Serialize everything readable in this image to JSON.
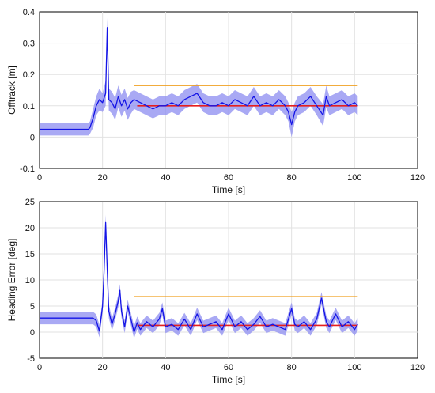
{
  "chart_data": [
    {
      "type": "line",
      "xlabel": "Time [s]",
      "ylabel": "Offtrack [m]",
      "xlim": [
        0,
        120
      ],
      "ylim": [
        -0.1,
        0.4
      ],
      "xticks": [
        0,
        20,
        40,
        60,
        80,
        100,
        120
      ],
      "yticks": [
        -0.1,
        0,
        0.1,
        0.2,
        0.3,
        0.4
      ],
      "xtick_labels": [
        "0",
        "20",
        "40",
        "60",
        "80",
        "100",
        "120"
      ],
      "ytick_labels": [
        "-0.1",
        "0",
        "0.1",
        "0.2",
        "0.3",
        "0.4"
      ],
      "grid": true,
      "colors": {
        "series": "#1414e6",
        "band": "#8c8cf0",
        "threshold": "#f0a020",
        "mean": "#e61e1e"
      },
      "series": [
        {
          "x": [
            0,
            15.5,
            16,
            17,
            18,
            19,
            20,
            21,
            21.5,
            22,
            23,
            24,
            25,
            26,
            27,
            28,
            29,
            30,
            32,
            34,
            36,
            38,
            40,
            42,
            44,
            46,
            48,
            50,
            52,
            54,
            56,
            58,
            60,
            62,
            64,
            66,
            68,
            70,
            72,
            74,
            76,
            78,
            79,
            80,
            81,
            82,
            84,
            86,
            88,
            90,
            91,
            92,
            94,
            96,
            98,
            100,
            101
          ],
          "y": [
            0.025,
            0.025,
            0.03,
            0.06,
            0.1,
            0.12,
            0.11,
            0.14,
            0.35,
            0.12,
            0.11,
            0.09,
            0.13,
            0.1,
            0.12,
            0.09,
            0.11,
            0.12,
            0.11,
            0.1,
            0.09,
            0.1,
            0.1,
            0.11,
            0.1,
            0.12,
            0.13,
            0.14,
            0.11,
            0.1,
            0.1,
            0.11,
            0.1,
            0.12,
            0.11,
            0.1,
            0.13,
            0.1,
            0.11,
            0.1,
            0.12,
            0.1,
            0.08,
            0.04,
            0.08,
            0.1,
            0.11,
            0.13,
            0.1,
            0.07,
            0.13,
            0.1,
            0.11,
            0.12,
            0.1,
            0.11,
            0.1
          ],
          "band_halfwidth": [
            0.02,
            0.02,
            0.02,
            0.03,
            0.03,
            0.035,
            0.03,
            0.04,
            0.03,
            0.035,
            0.035,
            0.035,
            0.035,
            0.035,
            0.035,
            0.035,
            0.035,
            0.03,
            0.03,
            0.03,
            0.03,
            0.03,
            0.03,
            0.03,
            0.03,
            0.03,
            0.03,
            0.03,
            0.03,
            0.03,
            0.03,
            0.03,
            0.03,
            0.03,
            0.03,
            0.03,
            0.03,
            0.03,
            0.03,
            0.03,
            0.03,
            0.03,
            0.03,
            0.04,
            0.03,
            0.03,
            0.03,
            0.03,
            0.03,
            0.035,
            0.035,
            0.03,
            0.03,
            0.03,
            0.03,
            0.03,
            0.03
          ]
        },
        {
          "x": [
            30,
            101
          ],
          "y": [
            0.165,
            0.165
          ]
        },
        {
          "x": [
            31,
            101
          ],
          "y": [
            0.1,
            0.1
          ]
        }
      ]
    },
    {
      "type": "line",
      "xlabel": "Time [s]",
      "ylabel": "Heading Error [deg]",
      "xlim": [
        0,
        120
      ],
      "ylim": [
        -5,
        25
      ],
      "xticks": [
        0,
        20,
        40,
        60,
        80,
        100,
        120
      ],
      "yticks": [
        -5,
        0,
        5,
        10,
        15,
        20,
        25
      ],
      "xtick_labels": [
        "0",
        "20",
        "40",
        "60",
        "80",
        "100",
        "120"
      ],
      "ytick_labels": [
        "-5",
        "0",
        "5",
        "10",
        "15",
        "20",
        "25"
      ],
      "grid": true,
      "colors": {
        "series": "#1414e6",
        "band": "#8c8cf0",
        "threshold": "#f0a020",
        "mean": "#e61e1e"
      },
      "series": [
        {
          "x": [
            0,
            17,
            18,
            19,
            20,
            20.5,
            21,
            21.5,
            22,
            23,
            24,
            25,
            25.5,
            26,
            27,
            28,
            29,
            30,
            31,
            32,
            34,
            36,
            38,
            39,
            40,
            42,
            44,
            46,
            48,
            50,
            52,
            54,
            56,
            58,
            60,
            62,
            64,
            66,
            68,
            70,
            72,
            74,
            76,
            78,
            80,
            81,
            82,
            84,
            86,
            88,
            89.5,
            91,
            92,
            94,
            96,
            98,
            100,
            101
          ],
          "y": [
            2.7,
            2.7,
            2.2,
            0.2,
            5,
            12,
            21,
            12,
            4,
            1.5,
            3.5,
            6,
            8,
            4,
            1,
            5,
            2.5,
            0,
            1.8,
            0.5,
            2,
            1,
            2.5,
            4.5,
            1,
            1.5,
            0.5,
            2.5,
            0.5,
            3.5,
            1,
            1.5,
            2,
            0.5,
            3.5,
            1,
            2,
            0.5,
            1.5,
            3,
            1,
            1.5,
            1,
            0.5,
            4.5,
            1.5,
            1,
            2,
            0.5,
            2.5,
            6.5,
            2,
            1,
            3.5,
            1,
            2,
            0.5,
            1.5
          ],
          "band_halfwidth": [
            1.2,
            1.2,
            1.2,
            1.2,
            1.3,
            1.4,
            1.5,
            1.4,
            1.3,
            1.2,
            1.2,
            1.2,
            1.2,
            1.2,
            1.2,
            1.2,
            1.2,
            1.2,
            1.2,
            1.2,
            1.2,
            1.2,
            1.2,
            1.2,
            1.2,
            1.2,
            1.2,
            1.2,
            1.2,
            1.2,
            1.2,
            1.2,
            1.2,
            1.2,
            1.2,
            1.2,
            1.2,
            1.2,
            1.2,
            1.2,
            1.2,
            1.2,
            1.2,
            1.2,
            1.2,
            1.2,
            1.2,
            1.2,
            1.2,
            1.2,
            1.2,
            1.2,
            1.2,
            1.2,
            1.2,
            1.2,
            1.2,
            1.2
          ]
        },
        {
          "x": [
            30,
            101
          ],
          "y": [
            6.8,
            6.8
          ]
        },
        {
          "x": [
            31,
            101
          ],
          "y": [
            1.3,
            1.3
          ]
        }
      ]
    }
  ]
}
